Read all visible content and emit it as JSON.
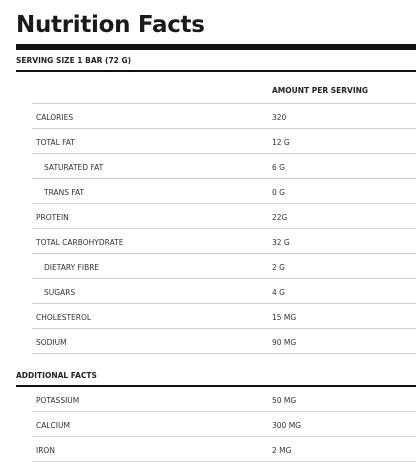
{
  "title": "Nutrition Facts",
  "serving_size": "SERVING SIZE 1 BAR (72 G)",
  "column_header": "AMOUNT PER SERVING",
  "nutrients": [
    {
      "label": "CALORIES",
      "value": "320"
    },
    {
      "label": "TOTAL FAT",
      "value": "12 G"
    },
    {
      "label": "SATURATED FAT",
      "value": "6 G"
    },
    {
      "label": "TRANS FAT",
      "value": "0 G"
    },
    {
      "label": "PROTEIN",
      "value": "22G"
    },
    {
      "label": "TOTAL CARBOHYDRATE",
      "value": "32 G"
    },
    {
      "label": "DIETARY FIBRE",
      "value": "2 G"
    },
    {
      "label": "SUGARS",
      "value": "4 G"
    },
    {
      "label": "CHOLESTEROL",
      "value": "15 MG"
    },
    {
      "label": "SODIUM",
      "value": "90 MG"
    }
  ],
  "additional_facts_label": "ADDITIONAL FACTS",
  "additional_facts": [
    {
      "label": "POTASSIUM",
      "value": "50 MG"
    },
    {
      "label": "CALCIUM",
      "value": "300 MG"
    },
    {
      "label": "IRON",
      "value": "2 MG"
    }
  ]
}
